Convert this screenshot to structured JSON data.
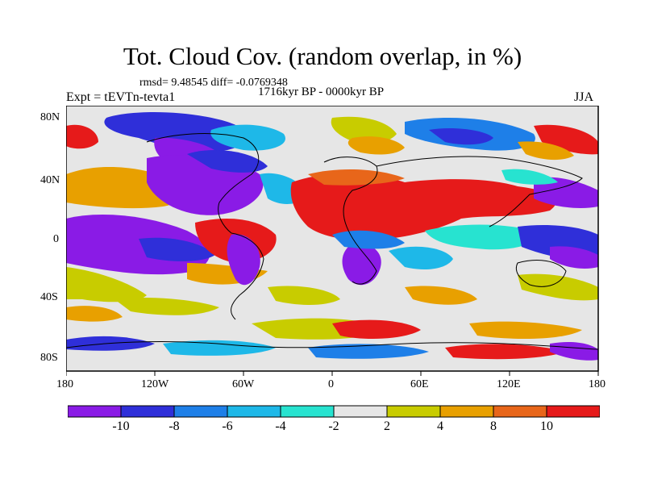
{
  "title": "Tot. Cloud Cov. (random overlap, in %)",
  "stats": "rmsd= 9.48545 diff= -0.0769348",
  "period": "1716kyr BP - 0000kyr BP",
  "experiment": "Expt = tEVTn-tevta1",
  "season": "JJA",
  "lat_labels": [
    "80N",
    "40N",
    "0",
    "40S",
    "80S"
  ],
  "lon_labels": [
    "180",
    "120W",
    "60W",
    "0",
    "60E",
    "120E",
    "180"
  ],
  "colorbar": {
    "colors": [
      "#8a1be6",
      "#2f2fd9",
      "#1e7fe8",
      "#1eb8e8",
      "#27e3d0",
      "#e6e6e6",
      "#c8cc00",
      "#e8a000",
      "#e8661a",
      "#e61a1a"
    ],
    "labels": [
      "-10",
      "-8",
      "-6",
      "-4",
      "-2",
      "2",
      "4",
      "8",
      "10"
    ]
  },
  "map_colors": {
    "neutral": "#e6e6e6",
    "coast": "#000000"
  }
}
